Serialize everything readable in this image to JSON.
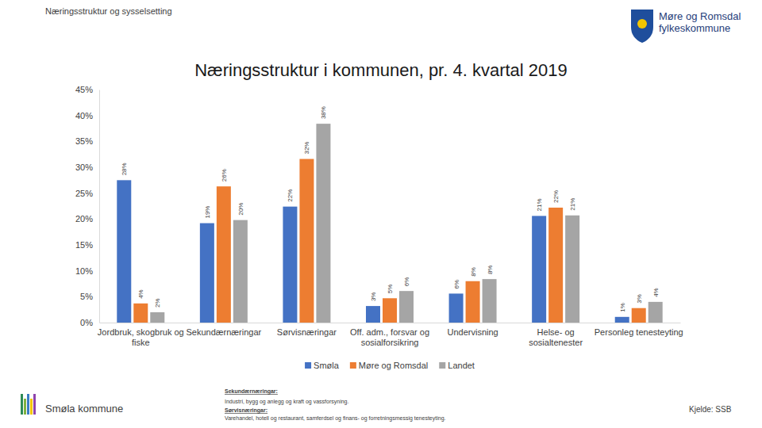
{
  "page": {
    "header": "Næringsstruktur og sysselsetting",
    "logo_lines": [
      "Møre og Romsdal",
      "fylkeskommune"
    ],
    "municipality": "Smøla kommune",
    "notes": [
      "Sekundærnæringar:",
      "Industri, bygg og anlegg og kraft og vassforsyning.",
      "Sørvisnæringar:",
      "Varehandel, hotell og restaurant, samferdsel og finans- og forretningsmessig tenesteyting."
    ],
    "source": "Kjelde: SSB"
  },
  "chart_data": {
    "type": "bar",
    "title": "Næringsstruktur i kommunen, pr. 4. kvartal 2019",
    "categories": [
      "Jordbruk, skogbruk og fiske",
      "Sekundærnæringar",
      "Sørvisnæringar",
      "Off. adm., forsvar og sosialforsikring",
      "Undervisning",
      "Helse- og sosialtenester",
      "Personleg tenesteyting"
    ],
    "series": [
      {
        "name": "Smøla",
        "color": "#4472c4",
        "values": [
          27.5,
          19.2,
          22.4,
          3.2,
          5.6,
          20.6,
          1.1
        ],
        "value_labels": [
          "28%",
          "19%",
          "22%",
          "3%",
          "6%",
          "21%",
          "1%"
        ]
      },
      {
        "name": "Møre og Romsdal",
        "color": "#ed7d31",
        "values": [
          3.7,
          26.3,
          31.6,
          4.7,
          8.0,
          22.2,
          2.8
        ],
        "value_labels": [
          "4%",
          "26%",
          "32%",
          "5%",
          "8%",
          "22%",
          "3%"
        ]
      },
      {
        "name": "Landet",
        "color": "#a5a5a5",
        "values": [
          2.0,
          19.8,
          38.4,
          6.1,
          8.4,
          20.7,
          4.0
        ],
        "value_labels": [
          "2%",
          "20%",
          "38%",
          "6%",
          "8%",
          "21%",
          "4%"
        ]
      }
    ],
    "ylim": [
      0,
      45
    ],
    "yticks": [
      {
        "value": 0,
        "label": "0%"
      },
      {
        "value": 5,
        "label": "5%"
      },
      {
        "value": 10,
        "label": "10%"
      },
      {
        "value": 15,
        "label": "15%"
      },
      {
        "value": 20,
        "label": "20%"
      },
      {
        "value": 25,
        "label": "25%"
      },
      {
        "value": 30,
        "label": "30%"
      },
      {
        "value": 35,
        "label": "35%"
      },
      {
        "value": 40,
        "label": "40%"
      },
      {
        "value": 45,
        "label": "45%"
      }
    ],
    "grid": false,
    "legend": "bottom",
    "data_labels": true
  }
}
